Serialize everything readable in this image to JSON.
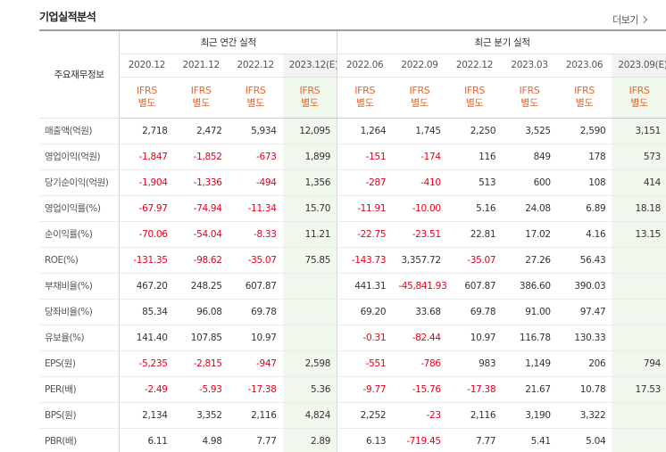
{
  "section_title": "기업실적분석",
  "more_label": "더보기",
  "table": {
    "corner_label": "주요재무정보",
    "annual_group": "최근 연간 실적",
    "quarter_group": "최근 분기 실적",
    "annual_periods": [
      "2020.12",
      "2021.12",
      "2022.12",
      "2023.12(E)"
    ],
    "quarter_periods": [
      "2022.06",
      "2022.09",
      "2022.12",
      "2023.03",
      "2023.06",
      "2023.09(E)"
    ],
    "ifrs_line1": "IFRS",
    "ifrs_line2": "별도",
    "rows": [
      {
        "label": "매출액(억원)",
        "values": [
          "2,718",
          "2,472",
          "5,934",
          "12,095",
          "1,264",
          "1,745",
          "2,250",
          "3,525",
          "2,590",
          "3,151"
        ]
      },
      {
        "label": "영업이익(억원)",
        "values": [
          "-1,847",
          "-1,852",
          "-673",
          "1,899",
          "-151",
          "-174",
          "116",
          "849",
          "178",
          "573"
        ]
      },
      {
        "label": "당기순이익(억원)",
        "values": [
          "-1,904",
          "-1,336",
          "-494",
          "1,356",
          "-287",
          "-410",
          "513",
          "600",
          "108",
          "414"
        ]
      },
      {
        "label": "영업이익률(%)",
        "values": [
          "-67.97",
          "-74.94",
          "-11.34",
          "15.70",
          "-11.91",
          "-10.00",
          "5.16",
          "24.08",
          "6.89",
          "18.18"
        ]
      },
      {
        "label": "순이익률(%)",
        "values": [
          "-70.06",
          "-54.04",
          "-8.33",
          "11.21",
          "-22.75",
          "-23.51",
          "22.81",
          "17.02",
          "4.16",
          "13.15"
        ]
      },
      {
        "label": "ROE(%)",
        "values": [
          "-131.35",
          "-98.62",
          "-35.07",
          "75.85",
          "-143.73",
          "3,357.72",
          "-35.07",
          "27.26",
          "56.43",
          ""
        ]
      },
      {
        "label": "부채비율(%)",
        "values": [
          "467.20",
          "248.25",
          "607.87",
          "",
          "441.31",
          "-45,841.93",
          "607.87",
          "386.60",
          "390.03",
          ""
        ]
      },
      {
        "label": "당좌비율(%)",
        "values": [
          "85.34",
          "96.08",
          "69.78",
          "",
          "69.20",
          "33.68",
          "69.78",
          "91.00",
          "97.47",
          ""
        ]
      },
      {
        "label": "유보율(%)",
        "values": [
          "141.40",
          "107.85",
          "10.97",
          "",
          "-0.31",
          "-82.44",
          "10.97",
          "116.78",
          "130.33",
          ""
        ]
      },
      {
        "label": "EPS(원)",
        "values": [
          "-5,235",
          "-2,815",
          "-947",
          "2,598",
          "-551",
          "-786",
          "983",
          "1,149",
          "206",
          "794"
        ]
      },
      {
        "label": "PER(배)",
        "values": [
          "-2.49",
          "-5.93",
          "-17.38",
          "5.36",
          "-9.77",
          "-15.76",
          "-17.38",
          "21.67",
          "10.78",
          "17.53"
        ]
      },
      {
        "label": "BPS(원)",
        "values": [
          "2,134",
          "3,352",
          "2,116",
          "4,824",
          "2,252",
          "-23",
          "2,116",
          "3,190",
          "3,322",
          ""
        ]
      },
      {
        "label": "PBR(배)",
        "values": [
          "6.11",
          "4.98",
          "7.77",
          "2.89",
          "6.13",
          "-719.45",
          "7.77",
          "5.41",
          "5.04",
          ""
        ]
      }
    ]
  },
  "colors": {
    "negative": "#e2001a",
    "ifrs": "#e8662b",
    "estimate_bg": "#f0f7ec"
  }
}
